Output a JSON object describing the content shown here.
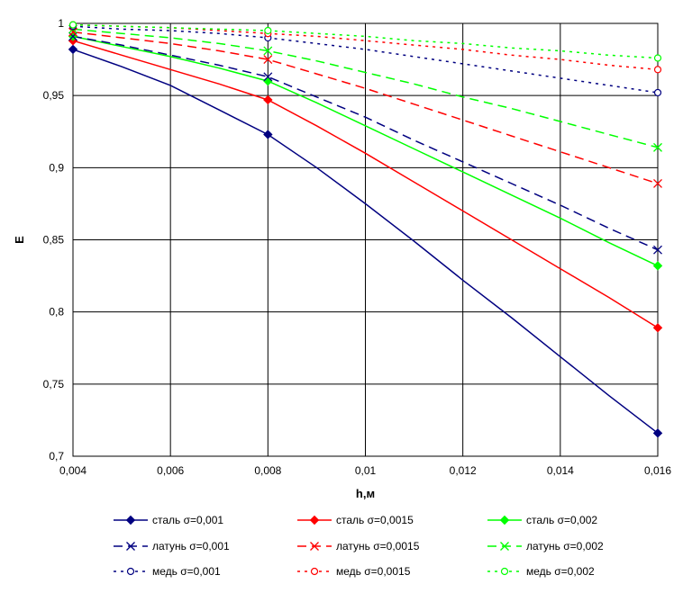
{
  "chart_data": {
    "type": "line",
    "xlabel": "h,м",
    "ylabel": "E",
    "xlim": [
      0.004,
      0.016
    ],
    "ylim": [
      0.7,
      1.0
    ],
    "grid": true,
    "legend_position": "bottom",
    "x_ticks": [
      "0,004",
      "0,006",
      "0,008",
      "0,01",
      "0,012",
      "0,014",
      "0,016"
    ],
    "y_ticks": [
      "0,7",
      "0,75",
      "0,8",
      "0,85",
      "0,9",
      "0,95",
      "1"
    ],
    "marker_x": [
      0.004,
      0.008,
      0.016
    ],
    "series": [
      {
        "name": "сталь σ=0,001",
        "color": "#000080",
        "dash": "solid",
        "marker": "diamond",
        "x": [
          0.004,
          0.005,
          0.006,
          0.007,
          0.008,
          0.009,
          0.01,
          0.011,
          0.012,
          0.013,
          0.014,
          0.015,
          0.016
        ],
        "y": [
          0.982,
          0.97,
          0.957,
          0.94,
          0.923,
          0.9,
          0.875,
          0.849,
          0.822,
          0.796,
          0.769,
          0.742,
          0.716
        ]
      },
      {
        "name": "сталь σ=0,0015",
        "color": "#ff0000",
        "dash": "solid",
        "marker": "diamond",
        "x": [
          0.004,
          0.005,
          0.006,
          0.007,
          0.008,
          0.009,
          0.01,
          0.011,
          0.012,
          0.013,
          0.014,
          0.015,
          0.016
        ],
        "y": [
          0.988,
          0.978,
          0.968,
          0.958,
          0.947,
          0.929,
          0.91,
          0.89,
          0.87,
          0.85,
          0.83,
          0.81,
          0.789
        ]
      },
      {
        "name": "сталь σ=0,002",
        "color": "#00ff00",
        "dash": "solid",
        "marker": "diamond",
        "x": [
          0.004,
          0.005,
          0.006,
          0.007,
          0.008,
          0.009,
          0.01,
          0.011,
          0.012,
          0.013,
          0.014,
          0.015,
          0.016
        ],
        "y": [
          0.991,
          0.984,
          0.977,
          0.969,
          0.96,
          0.945,
          0.929,
          0.913,
          0.897,
          0.881,
          0.865,
          0.848,
          0.832
        ]
      },
      {
        "name": "латунь σ=0,001",
        "color": "#000080",
        "dash": "long",
        "marker": "x",
        "x": [
          0.004,
          0.005,
          0.006,
          0.007,
          0.008,
          0.009,
          0.01,
          0.011,
          0.012,
          0.013,
          0.014,
          0.015,
          0.016
        ],
        "y": [
          0.991,
          0.985,
          0.978,
          0.971,
          0.963,
          0.949,
          0.935,
          0.919,
          0.904,
          0.889,
          0.874,
          0.858,
          0.843
        ]
      },
      {
        "name": "латунь σ=0,0015",
        "color": "#ff0000",
        "dash": "long",
        "marker": "x",
        "x": [
          0.004,
          0.005,
          0.006,
          0.007,
          0.008,
          0.009,
          0.01,
          0.011,
          0.012,
          0.013,
          0.014,
          0.015,
          0.016
        ],
        "y": [
          0.994,
          0.99,
          0.986,
          0.981,
          0.975,
          0.965,
          0.955,
          0.944,
          0.933,
          0.922,
          0.911,
          0.9,
          0.889
        ]
      },
      {
        "name": "латунь σ=0,002",
        "color": "#00ff00",
        "dash": "long",
        "marker": "x",
        "x": [
          0.004,
          0.005,
          0.006,
          0.007,
          0.008,
          0.009,
          0.01,
          0.011,
          0.012,
          0.013,
          0.014,
          0.015,
          0.016
        ],
        "y": [
          0.996,
          0.993,
          0.99,
          0.986,
          0.981,
          0.974,
          0.966,
          0.958,
          0.949,
          0.941,
          0.932,
          0.923,
          0.914
        ]
      },
      {
        "name": "медь σ=0,001",
        "color": "#000080",
        "dash": "dot",
        "marker": "circle",
        "x": [
          0.004,
          0.005,
          0.006,
          0.007,
          0.008,
          0.009,
          0.01,
          0.011,
          0.012,
          0.013,
          0.014,
          0.015,
          0.016
        ],
        "y": [
          0.998,
          0.996,
          0.995,
          0.993,
          0.99,
          0.986,
          0.982,
          0.977,
          0.972,
          0.967,
          0.962,
          0.957,
          0.952
        ]
      },
      {
        "name": "медь σ=0,0015",
        "color": "#ff0000",
        "dash": "dot",
        "marker": "circle",
        "x": [
          0.004,
          0.005,
          0.006,
          0.007,
          0.008,
          0.009,
          0.01,
          0.011,
          0.012,
          0.013,
          0.014,
          0.015,
          0.016
        ],
        "y": [
          0.999,
          0.998,
          0.997,
          0.995,
          0.993,
          0.991,
          0.988,
          0.985,
          0.982,
          0.978,
          0.975,
          0.971,
          0.968
        ]
      },
      {
        "name": "медь σ=0,002",
        "color": "#00ff00",
        "dash": "dot",
        "marker": "circle",
        "x": [
          0.004,
          0.005,
          0.006,
          0.007,
          0.008,
          0.009,
          0.01,
          0.011,
          0.012,
          0.013,
          0.014,
          0.015,
          0.016
        ],
        "y": [
          0.999,
          0.998,
          0.997,
          0.996,
          0.995,
          0.993,
          0.991,
          0.988,
          0.986,
          0.983,
          0.981,
          0.978,
          0.976
        ]
      }
    ]
  }
}
